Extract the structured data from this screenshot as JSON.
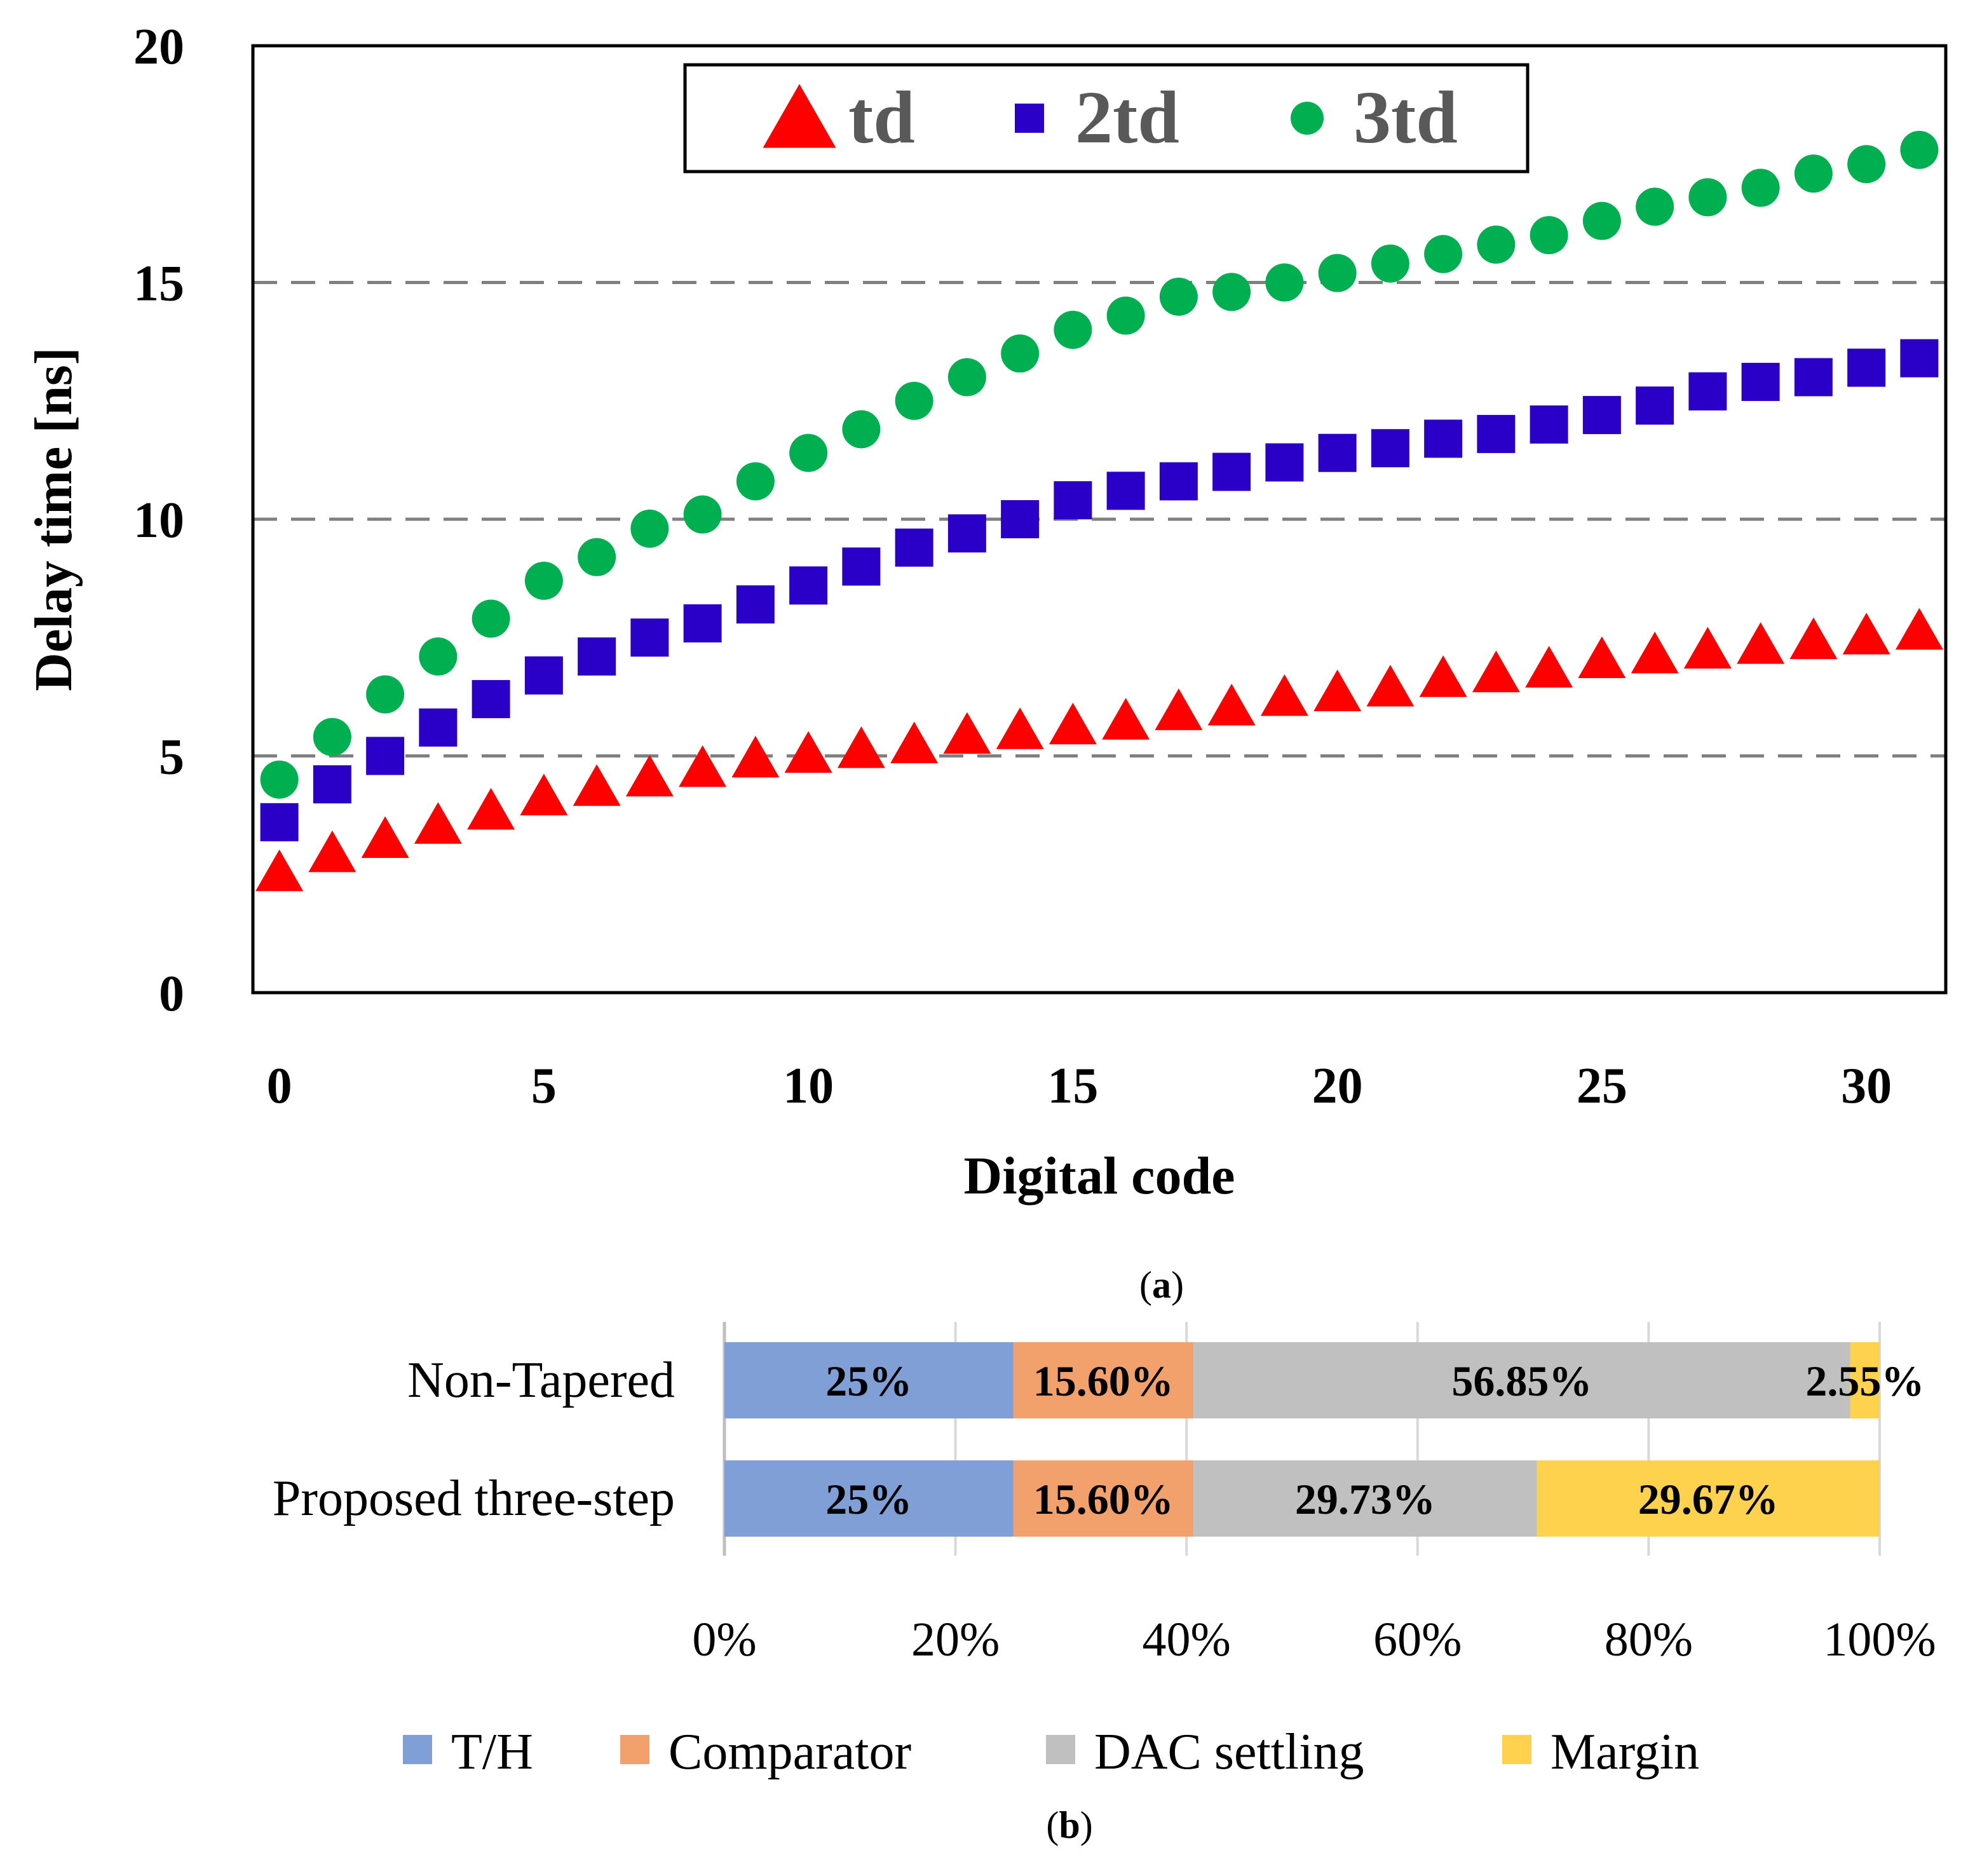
{
  "chart_data": [
    {
      "type": "scatter",
      "panel_label": "a",
      "xlabel": "Digital code",
      "ylabel": "Delay time [ns]",
      "xlim": [
        -0.5,
        31.5
      ],
      "ylim": [
        0,
        20
      ],
      "xticks": [
        "0",
        "5",
        "10",
        "15",
        "20",
        "25",
        "30"
      ],
      "yticks": [
        "0",
        "5",
        "10",
        "15",
        "20"
      ],
      "grid": "dashed horizontal at 5, 10, 15",
      "legend_position": "top-center",
      "series": [
        {
          "name": "td",
          "marker": "triangle",
          "color": "#ff0000",
          "x": [
            0,
            1,
            2,
            3,
            4,
            5,
            6,
            7,
            8,
            9,
            10,
            11,
            12,
            13,
            14,
            15,
            16,
            17,
            18,
            19,
            20,
            21,
            22,
            23,
            24,
            25,
            26,
            27,
            28,
            29,
            30,
            31
          ],
          "y": [
            2.5,
            2.9,
            3.2,
            3.5,
            3.8,
            4.1,
            4.3,
            4.5,
            4.7,
            4.9,
            5.0,
            5.1,
            5.2,
            5.4,
            5.5,
            5.6,
            5.7,
            5.9,
            6.0,
            6.2,
            6.3,
            6.4,
            6.6,
            6.7,
            6.8,
            7.0,
            7.1,
            7.2,
            7.3,
            7.4,
            7.5,
            7.6
          ]
        },
        {
          "name": "2td",
          "marker": "square",
          "color": "#2a00c8",
          "x": [
            0,
            1,
            2,
            3,
            4,
            5,
            6,
            7,
            8,
            9,
            10,
            11,
            12,
            13,
            14,
            15,
            16,
            17,
            18,
            19,
            20,
            21,
            22,
            23,
            24,
            25,
            26,
            27,
            28,
            29,
            30,
            31
          ],
          "y": [
            3.6,
            4.4,
            5.0,
            5.6,
            6.2,
            6.7,
            7.1,
            7.5,
            7.8,
            8.2,
            8.6,
            9.0,
            9.4,
            9.7,
            10.0,
            10.4,
            10.6,
            10.8,
            11.0,
            11.2,
            11.4,
            11.5,
            11.7,
            11.8,
            12.0,
            12.2,
            12.4,
            12.7,
            12.9,
            13.0,
            13.2,
            13.4
          ]
        },
        {
          "name": "3td",
          "marker": "circle",
          "color": "#00b050",
          "x": [
            0,
            1,
            2,
            3,
            4,
            5,
            6,
            7,
            8,
            9,
            10,
            11,
            12,
            13,
            14,
            15,
            16,
            17,
            18,
            19,
            20,
            21,
            22,
            23,
            24,
            25,
            26,
            27,
            28,
            29,
            30,
            31
          ],
          "y": [
            4.5,
            5.4,
            6.3,
            7.1,
            7.9,
            8.7,
            9.2,
            9.8,
            10.1,
            10.8,
            11.4,
            11.9,
            12.5,
            13.0,
            13.5,
            14.0,
            14.3,
            14.7,
            14.8,
            15.0,
            15.2,
            15.4,
            15.6,
            15.8,
            16.0,
            16.3,
            16.6,
            16.8,
            17.0,
            17.3,
            17.5,
            17.8
          ]
        }
      ]
    },
    {
      "type": "bar",
      "subtype": "100% stacked horizontal",
      "panel_label": "b",
      "categories": [
        "Non-Tapered",
        "Proposed three-step"
      ],
      "xticks": [
        "0%",
        "20%",
        "40%",
        "60%",
        "80%",
        "100%"
      ],
      "xlim": [
        0,
        100
      ],
      "grid": "vertical gridlines at 20% steps",
      "legend_position": "bottom",
      "series": [
        {
          "name": "T/H",
          "color": "#7f9fd6",
          "values": [
            25,
            25
          ],
          "labels": [
            "25%",
            "25%"
          ]
        },
        {
          "name": "Comparator",
          "color": "#f2a06c",
          "values": [
            15.6,
            15.6
          ],
          "labels": [
            "15.60%",
            "15.60%"
          ]
        },
        {
          "name": "DAC settling",
          "color": "#c0c0c0",
          "values": [
            56.85,
            29.73
          ],
          "labels": [
            "56.85%",
            "29.73%"
          ]
        },
        {
          "name": "Margin",
          "color": "#fed24c",
          "values": [
            2.55,
            29.67
          ],
          "labels": [
            "2.55%",
            "29.67%"
          ]
        }
      ]
    }
  ],
  "caption_a": "a",
  "caption_b": "b"
}
